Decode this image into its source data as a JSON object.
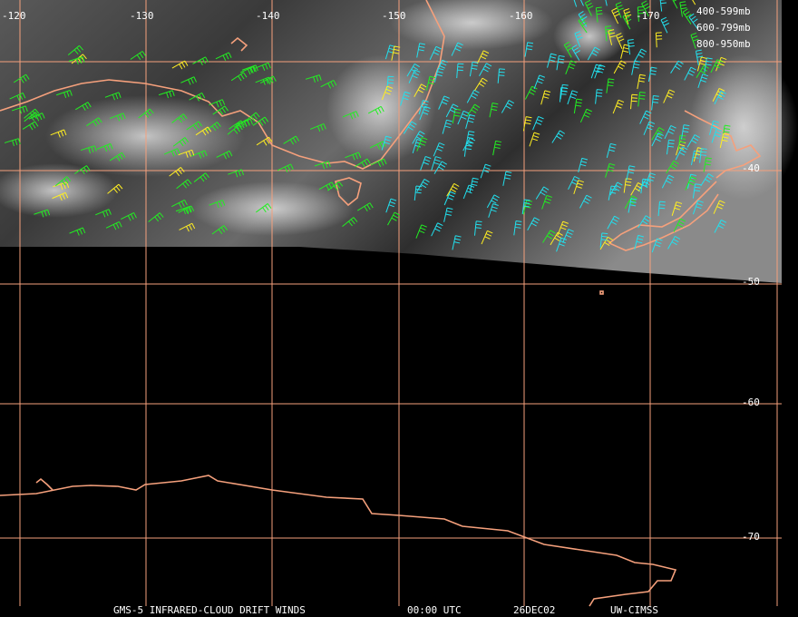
{
  "map": {
    "longitude_labels": [
      "-120",
      "-130",
      "-140",
      "-150",
      "-160",
      "-170"
    ],
    "latitude_labels": [
      "-40",
      "-50",
      "-60",
      "-70"
    ],
    "legend": [
      {
        "label": "400-599",
        "unit": "mb",
        "color": "#22ee22"
      },
      {
        "label": "600-799",
        "unit": "mb",
        "color": "#ffee22"
      },
      {
        "label": "800-950",
        "unit": "mb",
        "color": "#22e0ee"
      }
    ],
    "footer": [
      "GMS-5 INFRARED-CLOUD DRIFT WINDS",
      "00:00 UTC",
      "26DEC02",
      "UW-CIMSS"
    ]
  }
}
